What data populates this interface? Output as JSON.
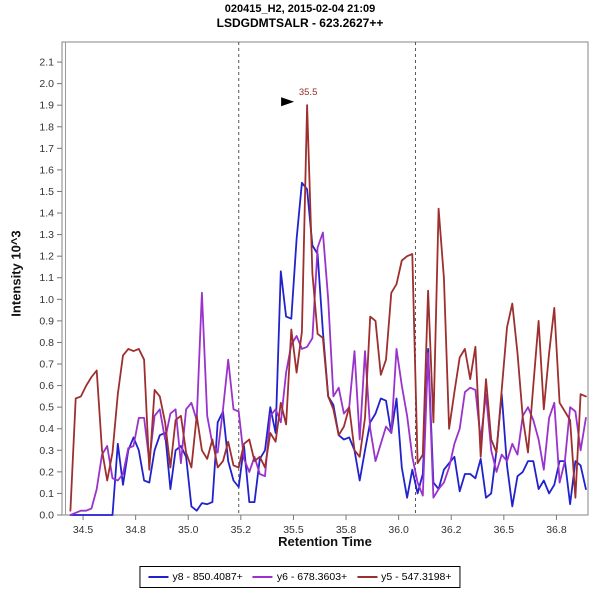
{
  "title": {
    "line1": "020415_H2, 2015-02-04 21:09",
    "line2": "LSDGDMTSALR - 623.2627++"
  },
  "axes": {
    "x_label": "Retention Time",
    "y_label": "Intensity 10^3",
    "x_min": 34.4,
    "x_max": 36.9,
    "y_min": 0.0,
    "y_max": 2.193,
    "y_tick_step": 0.1,
    "y_tick_labels": [
      "0.0",
      "0.1",
      "0.2",
      "0.3",
      "0.4",
      "0.5",
      "0.6",
      "0.7",
      "0.8",
      "0.9",
      "1.0",
      "1.1",
      "1.2",
      "1.3",
      "1.4",
      "1.5",
      "1.6",
      "1.7",
      "1.8",
      "1.9",
      "2.0",
      "2.1"
    ],
    "x_ticks": [
      {
        "value": 34.5,
        "label": "34.5"
      },
      {
        "value": 34.75,
        "label": "34.8"
      },
      {
        "value": 35.0,
        "label": "35.0"
      },
      {
        "value": 35.25,
        "label": "35.2"
      },
      {
        "value": 35.5,
        "label": "35.5"
      },
      {
        "value": 35.75,
        "label": "35.8"
      },
      {
        "value": 36.0,
        "label": "36.0"
      },
      {
        "value": 36.25,
        "label": "36.2"
      },
      {
        "value": 36.5,
        "label": "36.5"
      },
      {
        "value": 36.75,
        "label": "36.8"
      }
    ]
  },
  "peak_annotation": {
    "label": "35.5",
    "rt": 35.565,
    "intensity": 1.9,
    "text_color": "#992a2a",
    "arrow_color": "#000000"
  },
  "integration_boundaries": {
    "start": 35.24,
    "end": 36.08,
    "color": "#555555",
    "style": "dashed"
  },
  "colors": {
    "plot_border": "#999999",
    "tick": "#777777",
    "tick_label": "#333333"
  },
  "chart_data": {
    "type": "line",
    "title": "LSDGDMTSALR - 623.2627++",
    "xlabel": "Retention Time",
    "ylabel": "Intensity 10^3",
    "xlim": [
      34.4,
      36.9
    ],
    "ylim": [
      0.0,
      2.193
    ],
    "grid": false,
    "legend_position": "bottom-center",
    "x": [
      34.44,
      34.465,
      34.49,
      34.515,
      34.54,
      34.565,
      34.59,
      34.615,
      34.64,
      34.665,
      34.69,
      34.715,
      34.74,
      34.765,
      34.79,
      34.815,
      34.84,
      34.865,
      34.89,
      34.915,
      34.94,
      34.965,
      34.99,
      35.015,
      35.04,
      35.065,
      35.09,
      35.115,
      35.14,
      35.165,
      35.19,
      35.215,
      35.24,
      35.265,
      35.29,
      35.315,
      35.34,
      35.365,
      35.39,
      35.415,
      35.44,
      35.465,
      35.49,
      35.515,
      35.54,
      35.565,
      35.59,
      35.615,
      35.64,
      35.665,
      35.69,
      35.715,
      35.74,
      35.765,
      35.79,
      35.815,
      35.84,
      35.865,
      35.89,
      35.915,
      35.94,
      35.965,
      35.99,
      36.015,
      36.04,
      36.065,
      36.09,
      36.115,
      36.14,
      36.165,
      36.19,
      36.215,
      36.24,
      36.265,
      36.29,
      36.315,
      36.34,
      36.365,
      36.39,
      36.415,
      36.44,
      36.465,
      36.49,
      36.515,
      36.54,
      36.565,
      36.59,
      36.615,
      36.64,
      36.665,
      36.69,
      36.715,
      36.74,
      36.765,
      36.79,
      36.815,
      36.84,
      36.865,
      36.89
    ],
    "series": [
      {
        "name": "y8 - 850.4087+",
        "color": "#2222cc",
        "values": [
          0,
          0,
          0,
          0,
          0,
          0,
          0,
          0,
          0,
          0.33,
          0.14,
          0.3,
          0.36,
          0.3,
          0.16,
          0.15,
          0.3,
          0.37,
          0.38,
          0.12,
          0.3,
          0.32,
          0.27,
          0.04,
          0.02,
          0.055,
          0.05,
          0.06,
          0.43,
          0.48,
          0.25,
          0.16,
          0.13,
          0.32,
          0.06,
          0.06,
          0.26,
          0.3,
          0.5,
          0.38,
          1.13,
          0.92,
          0.91,
          1.28,
          1.54,
          1.51,
          1.25,
          1.21,
          0.85,
          0.55,
          0.51,
          0.37,
          0.35,
          0.36,
          0.3,
          0.16,
          0.3,
          0.43,
          0.47,
          0.54,
          0.53,
          0.38,
          0.54,
          0.22,
          0.08,
          0.21,
          0.1,
          0.19,
          0.77,
          0.15,
          0.12,
          0.21,
          0.24,
          0.27,
          0.11,
          0.19,
          0.19,
          0.17,
          0.26,
          0.08,
          0.1,
          0.3,
          0.56,
          0.23,
          0.04,
          0.18,
          0.2,
          0.25,
          0.25,
          0.12,
          0.16,
          0.1,
          0.14,
          0.25,
          0.25,
          0.05,
          0.25,
          0.23,
          0.12
        ]
      },
      {
        "name": "y6 - 678.3603+",
        "color": "#9933cc",
        "values": [
          0,
          0.01,
          0.02,
          0.02,
          0.03,
          0.12,
          0.28,
          0.32,
          0.17,
          0.16,
          0.19,
          0.31,
          0.32,
          0.45,
          0.45,
          0.25,
          0.46,
          0.49,
          0.35,
          0.47,
          0.49,
          0.24,
          0.49,
          0.52,
          0.44,
          1.03,
          0.46,
          0.33,
          0.29,
          0.49,
          0.72,
          0.49,
          0.48,
          0.26,
          0.2,
          0.27,
          0.19,
          0.18,
          0.46,
          0.49,
          0.43,
          0.66,
          0.79,
          0.83,
          0.77,
          0.78,
          0.82,
          1.24,
          1.31,
          1.0,
          0.55,
          0.59,
          0.47,
          0.5,
          0.76,
          0.35,
          0.76,
          0.4,
          0.25,
          0.33,
          0.41,
          0.38,
          0.77,
          0.6,
          0.46,
          0.27,
          0.15,
          0.09,
          0.75,
          0.08,
          0.12,
          0.15,
          0.22,
          0.33,
          0.4,
          0.57,
          0.59,
          0.58,
          0.35,
          0.56,
          0.3,
          0.2,
          0.28,
          0.25,
          0.33,
          0.28,
          0.46,
          0.5,
          0.44,
          0.35,
          0.21,
          0.45,
          0.52,
          0.15,
          0.25,
          0.5,
          0.48,
          0.3,
          0.45
        ]
      },
      {
        "name": "y5 - 547.3198+",
        "color": "#9e2f2f",
        "values": [
          0.02,
          0.54,
          0.55,
          0.6,
          0.64,
          0.67,
          0.3,
          0.16,
          0.29,
          0.56,
          0.74,
          0.77,
          0.76,
          0.77,
          0.72,
          0.21,
          0.58,
          0.55,
          0.43,
          0.22,
          0.44,
          0.46,
          0.29,
          0.22,
          0.46,
          0.3,
          0.26,
          0.35,
          0.22,
          0.25,
          0.34,
          0.23,
          0.22,
          0.33,
          0.35,
          0.25,
          0.27,
          0.22,
          0.38,
          0.34,
          0.52,
          0.42,
          0.86,
          0.66,
          0.85,
          1.9,
          1.12,
          0.84,
          0.82,
          0.55,
          0.49,
          0.37,
          0.41,
          0.5,
          0.3,
          0.27,
          0.45,
          0.92,
          0.9,
          0.65,
          0.72,
          1.03,
          1.07,
          1.18,
          1.2,
          1.21,
          0.24,
          0.28,
          1.04,
          0.43,
          1.42,
          1.1,
          0.4,
          0.57,
          0.73,
          0.77,
          0.63,
          0.78,
          0.27,
          0.63,
          0.35,
          0.29,
          0.58,
          0.87,
          0.98,
          0.75,
          0.45,
          0.29,
          0.6,
          0.9,
          0.49,
          0.75,
          0.96,
          0.52,
          0.48,
          0.44,
          0.08,
          0.56,
          0.55
        ]
      }
    ]
  }
}
